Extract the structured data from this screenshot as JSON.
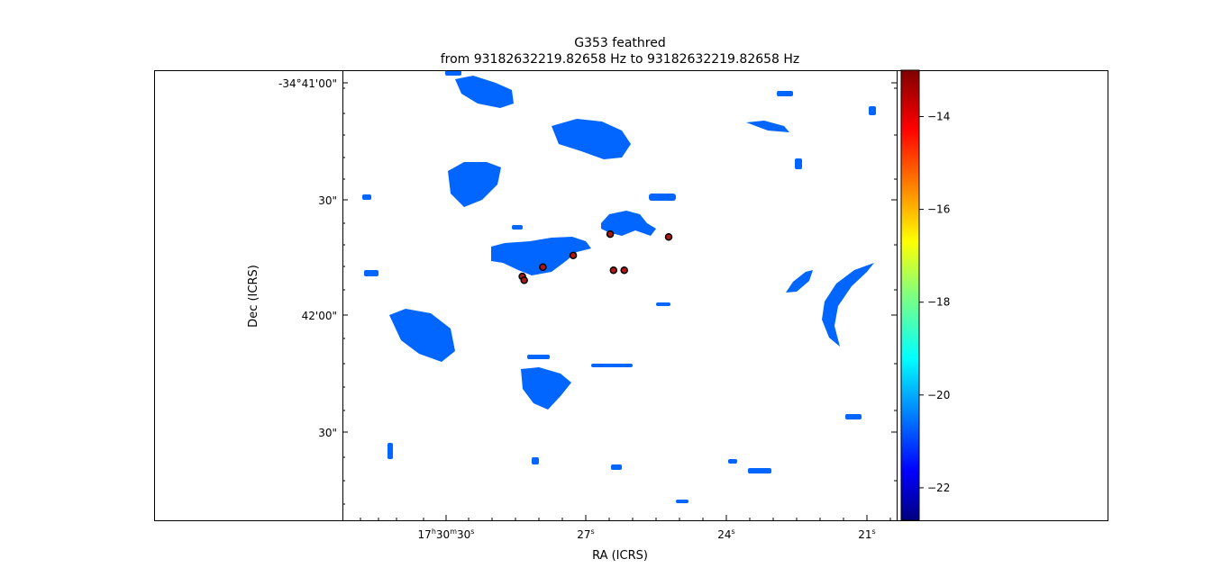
{
  "chart_data": {
    "type": "heatmap",
    "title": "G353 feathred",
    "subtitle": "from 93182632219.82658 Hz to 93182632219.82658 Hz",
    "xlabel": "RA (ICRS)",
    "ylabel": "Dec (ICRS)",
    "x_ticks": [
      {
        "h": "17",
        "m": "30",
        "s": "30",
        "value_s": 30
      },
      {
        "h": "",
        "m": "",
        "s": "27",
        "value_s": 27
      },
      {
        "h": "",
        "m": "",
        "s": "24",
        "value_s": 24
      },
      {
        "h": "",
        "m": "",
        "s": "21",
        "value_s": 21
      }
    ],
    "y_ticks": [
      {
        "label": "-34°41'00\"",
        "value_arcsec": 0
      },
      {
        "label": "30\"",
        "value_arcsec": -30
      },
      {
        "label": "42'00\"",
        "value_arcsec": -60
      },
      {
        "label": "30\"",
        "value_arcsec": -90
      }
    ],
    "colorbar": {
      "colormap": "jet",
      "range": [
        -22.7,
        -13
      ],
      "ticks": [
        -14,
        -16,
        -18,
        -20,
        -22
      ],
      "tick_labels": [
        "−14",
        "−16",
        "−18",
        "−20",
        "−22"
      ]
    },
    "emission_color": "#0066ff",
    "marker_color": "#b01818",
    "grid": false,
    "sources": [
      {
        "ra_s": 28.37,
        "dec_arcsec": -49.9
      },
      {
        "ra_s": 28.33,
        "dec_arcsec": -50.9
      },
      {
        "ra_s": 27.93,
        "dec_arcsec": -47.5
      },
      {
        "ra_s": 27.28,
        "dec_arcsec": -44.5
      },
      {
        "ra_s": 26.49,
        "dec_arcsec": -39.0
      },
      {
        "ra_s": 26.42,
        "dec_arcsec": -48.3
      },
      {
        "ra_s": 26.19,
        "dec_arcsec": -48.3
      },
      {
        "ra_s": 25.24,
        "dec_arcsec": -39.7
      }
    ]
  }
}
